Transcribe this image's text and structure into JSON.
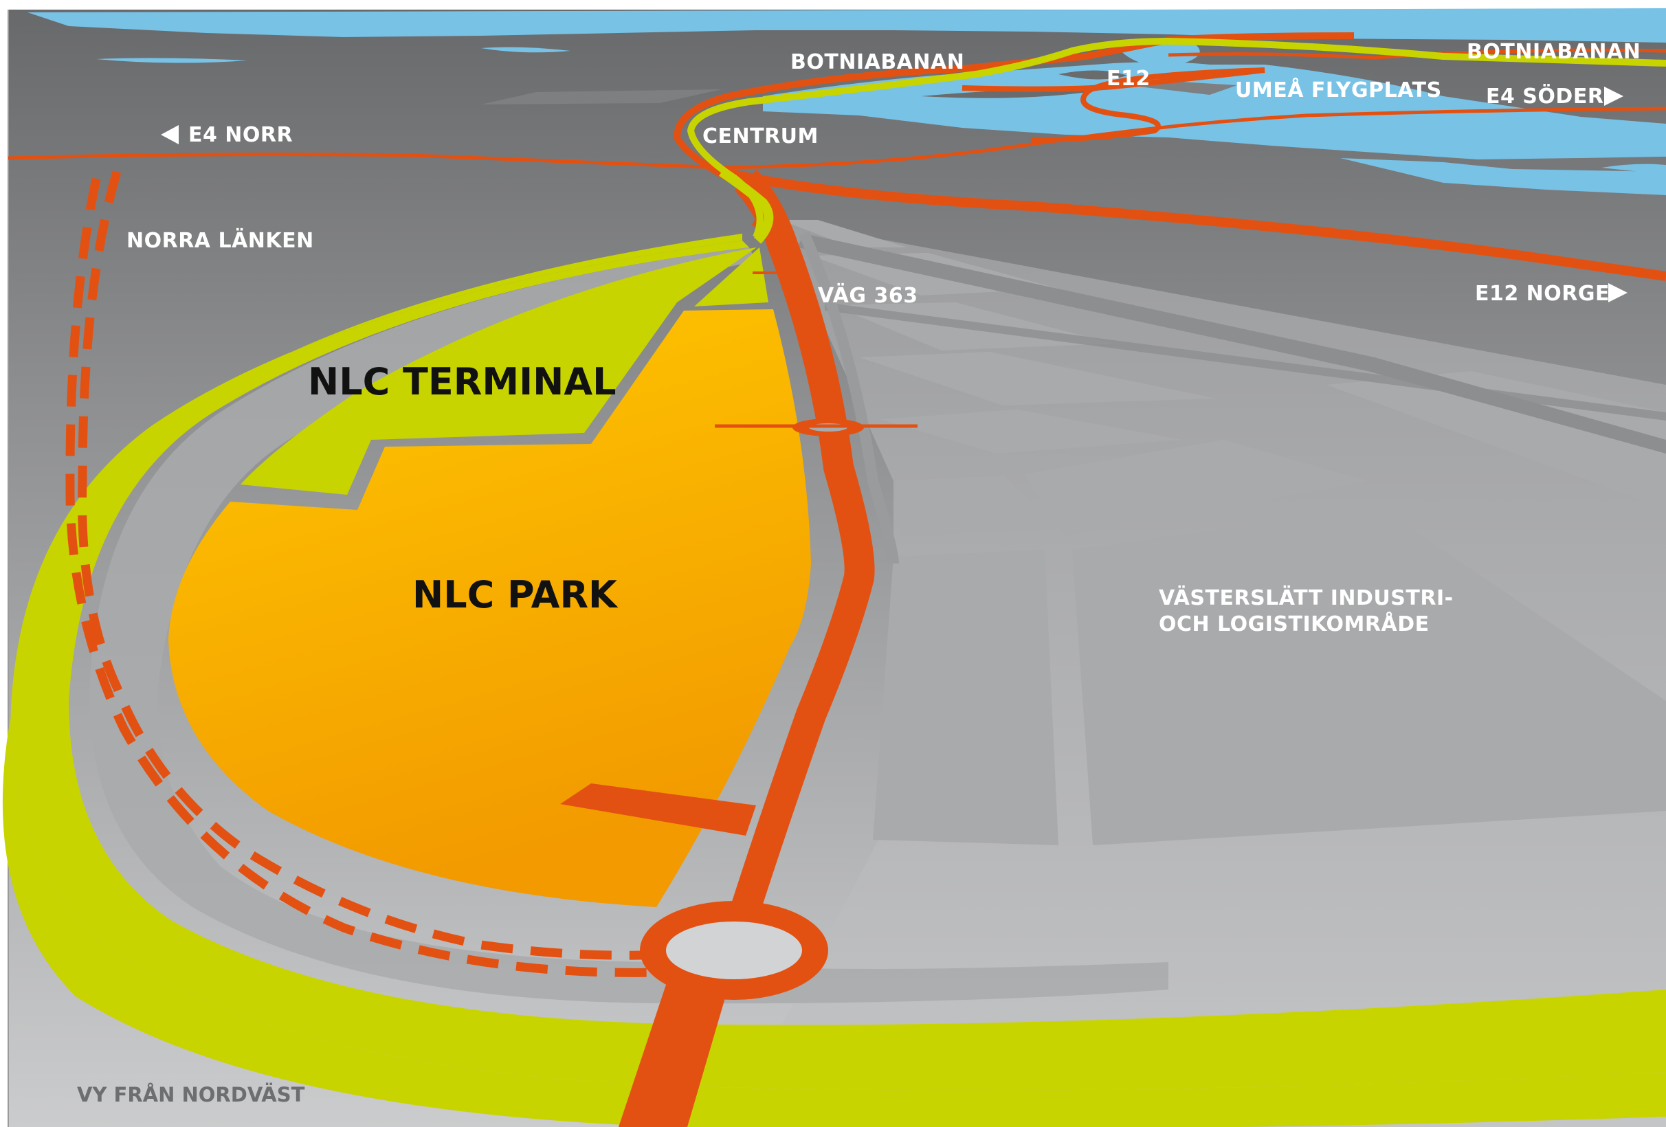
{
  "labels": {
    "botniabanan_left": "BOTNIABANAN",
    "botniabanan_right": "BOTNIABANAN",
    "e12": "E12",
    "umea_flygplats": "UMEÅ  FLYGPLATS",
    "e4_soder": "E4 SÖDER",
    "e4_norr": "E4 NORR",
    "centrum": "CENTRUM",
    "norra_lanken": "NORRA LÄNKEN",
    "vag_363": "VÄG 363",
    "e12_norge": "E12 NORGE",
    "nlc_terminal": "NLC TERMINAL",
    "nlc_park": "NLC PARK",
    "vasterslatt_line1": "VÄSTERSLÄTT INDUSTRI-",
    "vasterslatt_line2": "OCH LOGISTIKOMRÅDE",
    "view_caption": "VY FRÅN NORDVÄST"
  },
  "colors": {
    "water": "#78c2e6",
    "road": "#e35112",
    "railway": "#c8d400",
    "nlc_terminal_area": "#c8d400",
    "nlc_park_area": "#f9b200",
    "land_top": "#6a6b6d",
    "land_bottom": "#c9cacc",
    "industrial_area": "#b7b8ba"
  },
  "icons": [
    "arrow-left-icon",
    "arrow-right-icon"
  ]
}
